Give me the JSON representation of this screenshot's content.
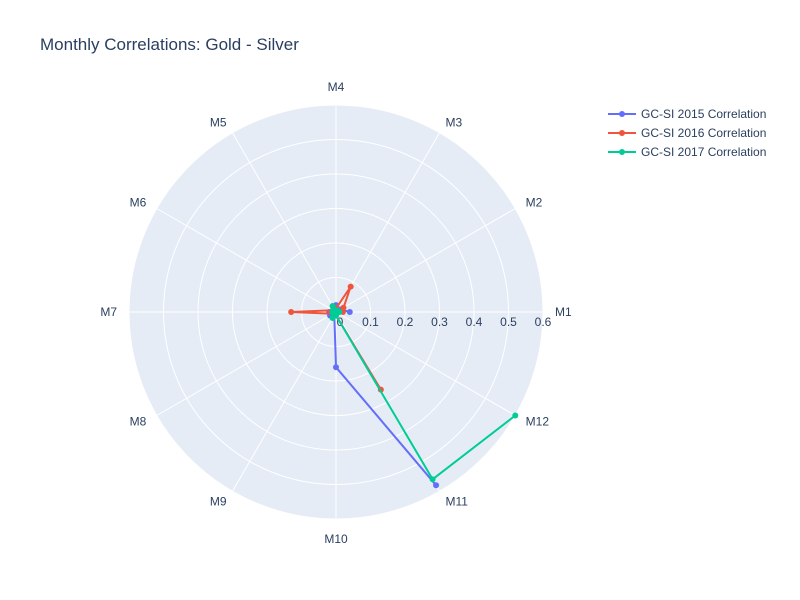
{
  "chart_data": {
    "type": "line",
    "subtype": "polar",
    "title": "Monthly Correlations: Gold - Silver",
    "angular_categories": [
      "M1",
      "M2",
      "M3",
      "M4",
      "M5",
      "M6",
      "M7",
      "M8",
      "M9",
      "M10",
      "M11",
      "M12"
    ],
    "angular_direction": "counterclockwise",
    "angular_start": "M1 at 0° (right)",
    "radial_ticks": [
      "0",
      "0.1",
      "0.2",
      "0.3",
      "0.4",
      "0.5",
      "0.6"
    ],
    "radial_range": [
      0,
      0.6
    ],
    "grid": true,
    "legend_position": "top-right",
    "series": [
      {
        "name": "GC-SI 2015 Correlation",
        "color": "#636efa",
        "categories": [
          "M1",
          "M2",
          "M3",
          "M4",
          "M5",
          "M6",
          "M7",
          "M8",
          "M9",
          "M10",
          "M11"
        ],
        "values": [
          0.04,
          0.015,
          0.01,
          0.02,
          0.01,
          0.01,
          0.02,
          0.02,
          0.01,
          0.16,
          0.58
        ]
      },
      {
        "name": "GC-SI 2016 Correlation",
        "color": "#ef553b",
        "categories": [
          "M1",
          "M2",
          "M3",
          "M4",
          "M5",
          "M6",
          "M7",
          "M8",
          "M9",
          "M10",
          "M11"
        ],
        "values": [
          0.02,
          0.025,
          0.085,
          0.01,
          0.01,
          0.01,
          0.13,
          0.01,
          0.01,
          0.01,
          0.26
        ]
      },
      {
        "name": "GC-SI 2017 Correlation",
        "color": "#00cc96",
        "categories": [
          "M1",
          "M2",
          "M3",
          "M4",
          "M5",
          "M6",
          "M7",
          "M8",
          "M9",
          "M10",
          "M11",
          "M12"
        ],
        "values": [
          0.01,
          0.005,
          0.005,
          0.005,
          0.02,
          0.01,
          0.01,
          0.01,
          0.02,
          0.01,
          0.56,
          0.6
        ]
      }
    ]
  }
}
